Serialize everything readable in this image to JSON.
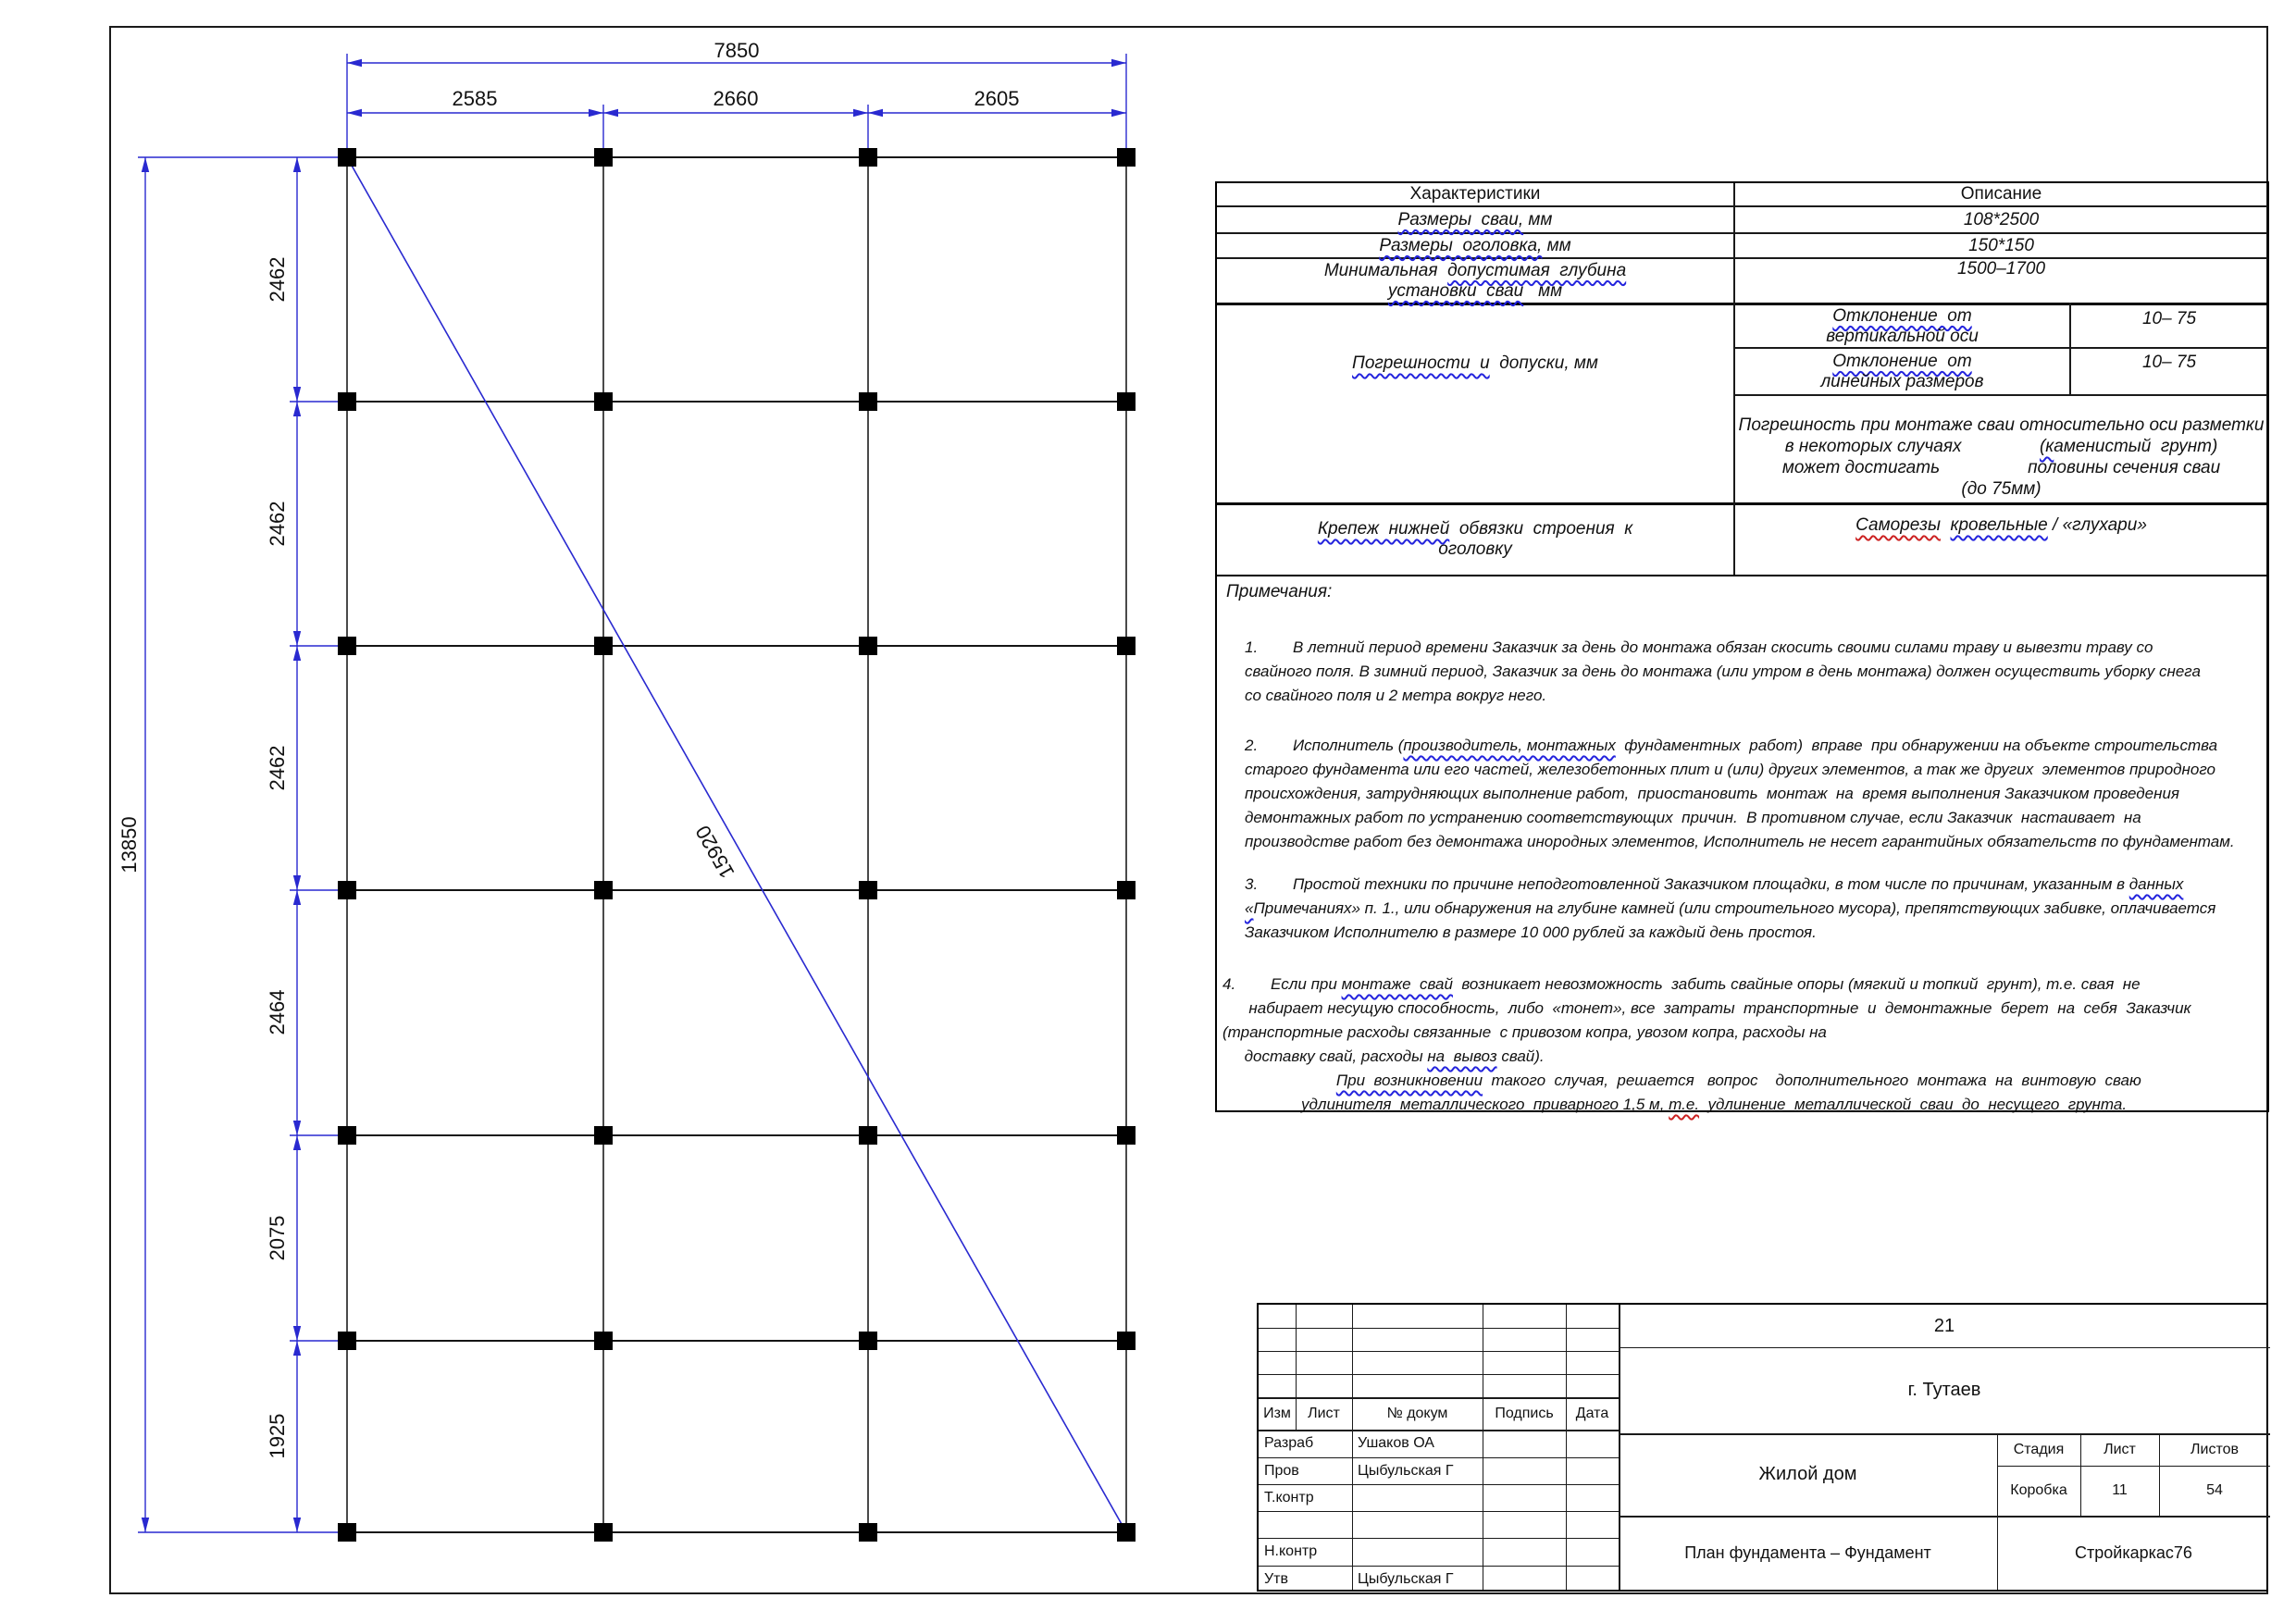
{
  "plan": {
    "total_width": "7850",
    "column_spans": [
      "2585",
      "2660",
      "2605"
    ],
    "total_height": "13850",
    "row_spans": [
      "2462",
      "2462",
      "2462",
      "2464",
      "2075",
      "1925"
    ],
    "diagonal": "15920",
    "colors": {
      "dimension_blue": "#2929d0",
      "grid_horizontal": "#141414",
      "grid_vertical": "#4a4a4a",
      "pile_black": "#000000"
    }
  },
  "spec_table": {
    "header": {
      "characteristics": "Характеристики",
      "description": "Описание"
    },
    "r1": {
      "label": [
        {
          "t": "Размеры  сваи,",
          "u": "b"
        },
        {
          "t": " мм"
        }
      ],
      "value": "108*2500"
    },
    "r2": {
      "label": [
        {
          "t": "Размеры  оголовка,",
          "u": "b"
        },
        {
          "t": " мм"
        }
      ],
      "value": "150*150"
    },
    "r3": {
      "label": [
        {
          "t": "Минимальная  "
        },
        {
          "t": "допустимая  глубина",
          "u": "b"
        },
        {
          "t": "\n"
        },
        {
          "t": "установки  сваи",
          "u": "b"
        },
        {
          "t": "   мм"
        }
      ],
      "value": "1500–1700"
    },
    "r4": {
      "label": [
        {
          "t": "Погрешности  и",
          "u": "b"
        },
        {
          "t": "  допуски, мм"
        }
      ],
      "sub1": {
        "label": [
          {
            "t": "Отклонение  от",
            "u": "b"
          },
          {
            "t": "\nвертикальной оси"
          }
        ],
        "value": "10– 75"
      },
      "sub2": {
        "label": [
          {
            "t": "Отклонение  от",
            "u": "b"
          },
          {
            "t": "\nлинейных размеров"
          }
        ],
        "value": "10– 75"
      },
      "merged": [
        {
          "t": "Погрешность при монтаже сваи относительно оси разметки\nв некоторых случаях                "
        },
        {
          "t": "(к",
          "u": "b"
        },
        {
          "t": "аменистый  грунт)\nможет достигать                  половины сечения сваи\n(до 75мм)"
        }
      ]
    },
    "r5": {
      "label": [
        {
          "t": "Крепеж  нижней",
          "u": "b"
        },
        {
          "t": "  обвязки  строения  к\nоголовку"
        }
      ],
      "value": [
        {
          "t": "Саморезы",
          "u": "r"
        },
        {
          "t": "  "
        },
        {
          "t": "кровельные",
          "u": "b"
        },
        {
          "t": " / «глухари»"
        }
      ]
    }
  },
  "notes": {
    "heading": "Примечания:",
    "p1": [
      {
        "t": "1.        В летний период времени Заказчик за день до монтажа обязан скосить своими силами траву и вывезти траву со\nсвайного поля. В зимний период, Заказчик за день до монтажа (или утром в день монтажа) должен осуществить уборку снега\nсо свайного поля и 2 метра вокруг него."
      }
    ],
    "p2": [
      {
        "t": "2.        Исполнитель ("
      },
      {
        "t": "производитель, монтажных",
        "u": "b"
      },
      {
        "t": "  фундаментных  работ)  вправе  при обнаружении на объекте строительства\nстарого фундамента или его частей, железобетонных плит и (или) других элементов, а так же других  элементов природного\nпроисхождения, затрудняющих выполнение работ,  приостановить  монтаж  на  время выполнения Заказчиком проведения\nдемонтажных работ по устранению соответствующих  причин.  В противном случае, если Заказчик  настаивает  на\nпроизводстве работ без демонтажа инородных элементов, Исполнитель не несет гарантийных обязательств по фундаментам."
      }
    ],
    "p3": [
      {
        "t": "3.        Простой техники по причине неподготовленной Заказчиком площадки, в том числе по причинам, указанным в "
      },
      {
        "t": "данных",
        "u": "b"
      },
      {
        "t": "\n"
      },
      {
        "t": "«",
        "u": "b"
      },
      {
        "t": "Примечаниях» п. 1., или обнаружения на глубине камней (или строительного мусора), препятствующих забивке, оплачивается\nЗаказчиком Исполнителю в размере 10 000 рублей за каждый день простоя."
      }
    ],
    "p4": [
      {
        "t": "4.        Если при "
      },
      {
        "t": "монтаже  свай",
        "u": "b"
      },
      {
        "t": "  возникает невозможность  забить свайные опоры (мягкий и топкий  грунт), т.е. свая  не\n      набирает несущую способность,  либо  «тонет», все  затраты  транспортные  и  демонтажные  берет  на  себя  Заказчик\n(транспортные расходы связанные  с привозом копра, увозом копра, расходы на\n     доставку свай, расходы "
      },
      {
        "t": "на  вывоз",
        "u": "b"
      },
      {
        "t": " свай).\n                          "
      },
      {
        "t": "При  возникновении",
        "u": "b"
      },
      {
        "t": "  такого  случая,  решается   вопрос    дополнительного  монтажа  на  винтовую  сваю\n                  удлинителя  металлического  приварного 1,5 м, "
      },
      {
        "t": "т.е.",
        "u": "r"
      },
      {
        "t": "  удлинение  металлической  сваи  до  несущего  грунта."
      }
    ]
  },
  "title_block": {
    "rev_header": {
      "izm": "Изм",
      "list": "Лист",
      "ndoc": "№ докум",
      "podpis": "Подпись",
      "data": "Дата"
    },
    "rows": [
      {
        "label": "Разраб",
        "name": "Ушаков ОА"
      },
      {
        "label": "Пров",
        "name": "Цыбульская Г"
      },
      {
        "label": "Т.контр",
        "name": ""
      },
      {
        "label": "",
        "name": ""
      },
      {
        "label": "Н.контр",
        "name": ""
      },
      {
        "label": "Утв",
        "name": "Цыбульская Г"
      }
    ],
    "doc_number": "21",
    "city": "г. Тутаев",
    "object_name": "Жилой дом",
    "stage_header": {
      "stage": "Стадия",
      "sheet": "Лист",
      "sheets": "Листов"
    },
    "stage_values": {
      "stage": "Коробка",
      "sheet": "11",
      "sheets": "54"
    },
    "drawing_title": "План фундамента – Фундамент",
    "company": "Стройкаркас76"
  }
}
